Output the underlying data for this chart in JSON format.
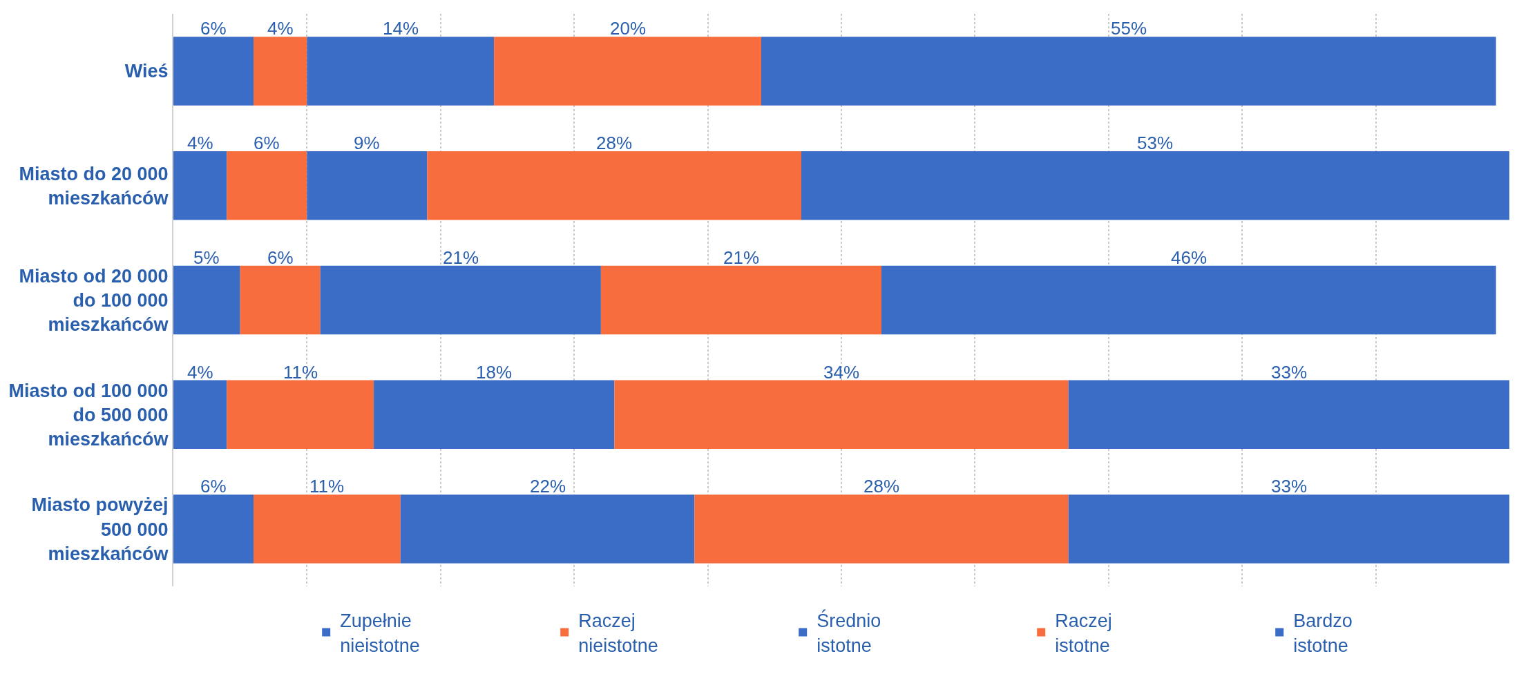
{
  "chart_data": {
    "type": "bar",
    "orientation": "horizontal",
    "stacked": true,
    "categories": [
      "Wieś",
      "Miasto do 20 000 mieszkańców",
      "Miasto od 20 000 do 100 000 mieszkańców",
      "Miasto od 100 000 do 500 000 mieszkańców",
      "Miasto powyżej 500 000 mieszkańców"
    ],
    "series": [
      {
        "name": "Zupełnie nieistotne",
        "color": "#3b6cc6",
        "values": [
          6,
          4,
          5,
          4,
          6
        ],
        "value_labels": [
          "6%",
          "4%",
          "5%",
          "4%",
          "6%"
        ]
      },
      {
        "name": "Raczej nieistotne",
        "color": "#f76d3e",
        "values": [
          4,
          6,
          6,
          11,
          11
        ],
        "value_labels": [
          "4%",
          "6%",
          "6%",
          "11%",
          "11%"
        ]
      },
      {
        "name": "Średnio istotne",
        "color": "#3b6cc6",
        "values": [
          14,
          9,
          21,
          18,
          22
        ],
        "value_labels": [
          "14%",
          "9%",
          "21%",
          "18%",
          "22%"
        ]
      },
      {
        "name": "Raczej istotne",
        "color": "#f76d3e",
        "values": [
          20,
          28,
          21,
          34,
          28
        ],
        "value_labels": [
          "20%",
          "28%",
          "21%",
          "34%",
          "28%"
        ]
      },
      {
        "name": "Bardzo istotne",
        "color": "#3b6cc6",
        "values": [
          55,
          53,
          46,
          33,
          33
        ],
        "value_labels": [
          "55%",
          "53%",
          "46%",
          "33%",
          "33%"
        ]
      }
    ],
    "xlim": [
      0,
      100
    ],
    "xticks": [
      {
        "value": 0,
        "label": null
      },
      {
        "value": 10,
        "label": null
      },
      {
        "value": 20,
        "label": null
      },
      {
        "value": 30,
        "label": null
      },
      {
        "value": 40,
        "label": null
      },
      {
        "value": 50,
        "label": null
      },
      {
        "value": 60,
        "label": null
      },
      {
        "value": 70,
        "label": null
      },
      {
        "value": 80,
        "label": null
      },
      {
        "value": 90,
        "label": null
      }
    ],
    "tick_labels": "y",
    "grid": "x",
    "legend": "bottom"
  }
}
